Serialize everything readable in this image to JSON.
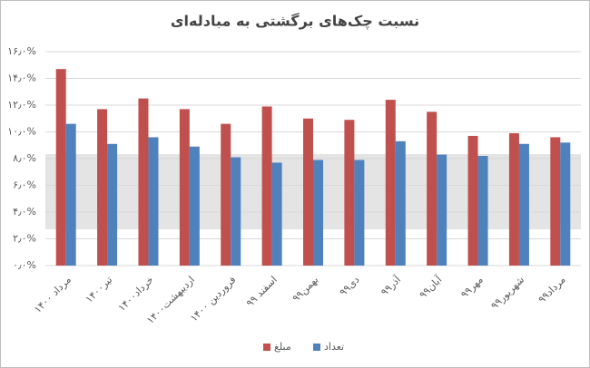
{
  "chart_data": {
    "type": "bar",
    "title": "نسبت چک‌های برگشتی به مبادله‌ای",
    "categories": [
      "مرداد ۱۴۰۰",
      "تیر۱۴۰۰",
      "خرداد۱۴۰۰",
      "اردیبهشت۱۴۰۰",
      "فروردین ۱۴۰۰",
      "اسفند ۹۹",
      "بهمن۹۹",
      "دی۹۹",
      "آذر۹۹",
      "آبان۹۹",
      "مهر۹۹",
      "شهریور۹۹",
      "مرداد۹۹"
    ],
    "series": [
      {
        "name": "مبلغ",
        "color": "#c0504d",
        "values": [
          14.7,
          11.7,
          12.5,
          11.7,
          10.6,
          11.9,
          11.0,
          10.9,
          12.4,
          11.5,
          9.7,
          9.9,
          9.6
        ]
      },
      {
        "name": "تعداد",
        "color": "#4f81bd",
        "values": [
          10.6,
          9.1,
          9.6,
          8.9,
          8.1,
          7.7,
          7.9,
          7.9,
          9.3,
          8.3,
          8.2,
          9.1,
          9.2
        ]
      }
    ],
    "ylim": [
      0,
      16
    ],
    "yticks": [
      {
        "value": 0,
        "label": "۰٫۰%"
      },
      {
        "value": 2,
        "label": "۲٫۰%"
      },
      {
        "value": 4,
        "label": "۴٫۰%"
      },
      {
        "value": 6,
        "label": "۶٫۰%"
      },
      {
        "value": 8,
        "label": "۸٫۰%"
      },
      {
        "value": 10,
        "label": "۱۰٫۰%"
      },
      {
        "value": 12,
        "label": "۱۲٫۰%"
      },
      {
        "value": 14,
        "label": "۱۴٫۰%"
      },
      {
        "value": 16,
        "label": "۱۶٫۰%"
      }
    ],
    "grid": true,
    "legend": "bottom"
  }
}
